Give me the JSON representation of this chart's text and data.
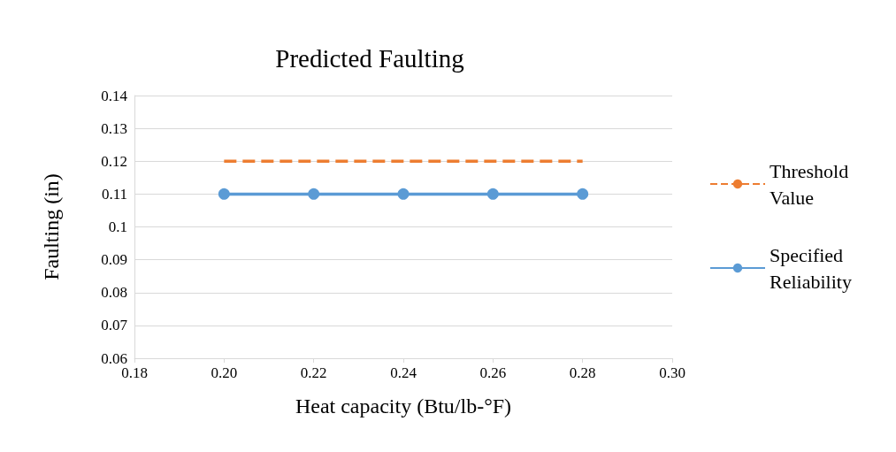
{
  "chart_data": {
    "type": "line",
    "title": "Predicted Faulting",
    "xlabel": "Heat capacity (Btu/lb-°F)",
    "ylabel": "Faulting (in)",
    "xlim": [
      0.18,
      0.3
    ],
    "xticks": [
      0.18,
      {
        "value": 0.2,
        "label": "0.20"
      },
      0.22,
      0.24,
      0.26,
      0.28,
      {
        "value": 0.3,
        "label": "0.30"
      }
    ],
    "ylim": [
      0.06,
      0.14
    ],
    "yticks": [
      0.06,
      0.07,
      0.08,
      0.09,
      0.1,
      0.11,
      0.12,
      0.13,
      0.14
    ],
    "grid": "y",
    "legend": "right",
    "series": [
      {
        "name": "Threshold Value",
        "color": "#ed7d31",
        "line_style": "dashed",
        "marker": "none",
        "x": [
          0.2,
          0.28
        ],
        "values": [
          0.12,
          0.12
        ]
      },
      {
        "name": "Specified Reliability",
        "color": "#5b9bd5",
        "line_style": "solid",
        "marker": "circle",
        "x": [
          0.2,
          0.22,
          0.24,
          0.26,
          0.28
        ],
        "values": [
          0.11,
          0.11,
          0.11,
          0.11,
          0.11
        ]
      }
    ]
  }
}
